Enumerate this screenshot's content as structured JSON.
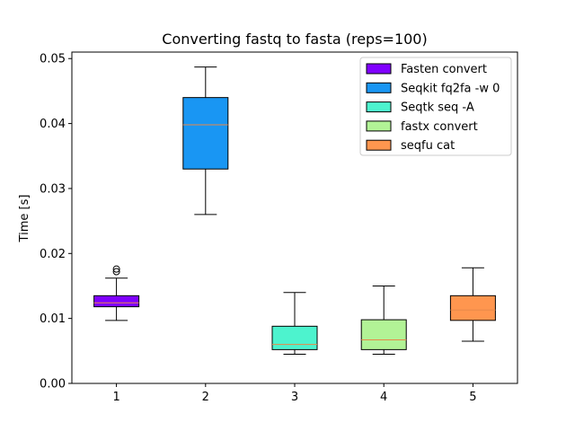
{
  "chart_data": {
    "type": "box",
    "title": "Converting fastq to fasta (reps=100)",
    "xlabel": "",
    "ylabel": "Time [s]",
    "ylim": [
      0.0,
      0.051
    ],
    "xlim": [
      0.5,
      5.5
    ],
    "yticks": [
      0.0,
      0.01,
      0.02,
      0.03,
      0.04,
      0.05
    ],
    "ytick_labels": [
      "0.00",
      "0.01",
      "0.02",
      "0.03",
      "0.04",
      "0.05"
    ],
    "categories": [
      "1",
      "2",
      "3",
      "4",
      "5"
    ],
    "grid": false,
    "legend_position": "top-right",
    "series": [
      {
        "name": "Fasten convert",
        "color": "#8000ff",
        "whisker_low": 0.0097,
        "q1": 0.0118,
        "median": 0.0124,
        "q3": 0.0135,
        "whisker_high": 0.0162,
        "outliers": [
          0.0172,
          0.0176
        ]
      },
      {
        "name": "Seqkit fq2fa -w 0",
        "color": "#1996f3",
        "whisker_low": 0.026,
        "q1": 0.033,
        "median": 0.0398,
        "q3": 0.044,
        "whisker_high": 0.0487,
        "outliers": []
      },
      {
        "name": "Seqtk seq -A",
        "color": "#4df3ce",
        "whisker_low": 0.0045,
        "q1": 0.0052,
        "median": 0.006,
        "q3": 0.0088,
        "whisker_high": 0.014,
        "outliers": []
      },
      {
        "name": "fastx convert",
        "color": "#b2f396",
        "whisker_low": 0.0045,
        "q1": 0.0052,
        "median": 0.0067,
        "q3": 0.0098,
        "whisker_high": 0.015,
        "outliers": []
      },
      {
        "name": "seqfu cat",
        "color": "#ff964f",
        "whisker_low": 0.0065,
        "q1": 0.0097,
        "median": 0.0113,
        "q3": 0.0135,
        "whisker_high": 0.0178,
        "outliers": []
      }
    ]
  }
}
